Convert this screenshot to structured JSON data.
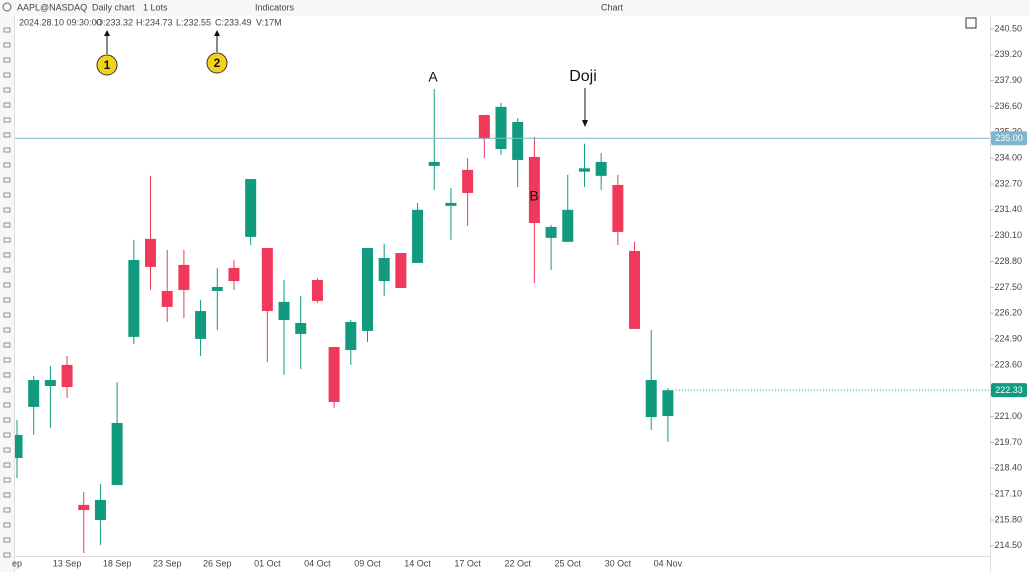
{
  "toolbar": {
    "symbol": "AAPL@NASDAQ",
    "timeframe": "Daily chart",
    "lots": "1 Lots",
    "indicators": "Indicators",
    "window_title": "Chart"
  },
  "legend": {
    "datetime": "2024.28.10 09:30:00",
    "open": "O:233.32",
    "high": "H:234.73",
    "low": "L:232.55",
    "close": "C:233.49",
    "volume": "V:17M"
  },
  "callouts": [
    "1",
    "2"
  ],
  "annotations": {
    "a": "A",
    "b": "B",
    "doji": "Doji"
  },
  "chart_data": {
    "type": "candlestick",
    "categories": [
      "ep",
      null,
      null,
      "13 Sep",
      null,
      null,
      "18 Sep",
      null,
      null,
      "23 Sep",
      null,
      null,
      "26 Sep",
      null,
      null,
      "01 Oct",
      null,
      null,
      "04 Oct",
      null,
      null,
      "09 Oct",
      null,
      null,
      "14 Oct",
      null,
      null,
      "17 Oct",
      null,
      null,
      "22 Oct",
      null,
      null,
      "25 Oct",
      null,
      null,
      "30 Oct",
      null,
      null,
      "04 Nov"
    ],
    "open": [
      218.92,
      221.49,
      222.54,
      223.6,
      216.56,
      215.8,
      217.56,
      225.01,
      229.94,
      227.32,
      228.63,
      224.91,
      227.32,
      228.48,
      230.04,
      229.48,
      225.86,
      225.16,
      227.87,
      224.5,
      224.35,
      225.31,
      227.82,
      229.23,
      228.73,
      233.61,
      231.6,
      233.41,
      236.17,
      234.46,
      233.91,
      234.06,
      229.99,
      229.79,
      233.32,
      233.11,
      232.65,
      229.33,
      220.98,
      221.03
    ],
    "high": [
      220.83,
      223.05,
      223.55,
      224.05,
      217.21,
      217.61,
      222.74,
      229.89,
      233.11,
      229.38,
      229.38,
      226.87,
      228.48,
      228.88,
      232.95,
      229.48,
      227.87,
      227.07,
      227.97,
      224.5,
      225.86,
      229.48,
      229.69,
      229.23,
      231.75,
      237.48,
      232.5,
      234.01,
      236.17,
      236.78,
      236.02,
      235.07,
      230.64,
      233.16,
      234.73,
      234.26,
      233.16,
      229.79,
      225.36,
      222.44
    ],
    "low": [
      217.91,
      220.08,
      220.43,
      221.94,
      214.14,
      214.54,
      217.56,
      224.65,
      227.37,
      225.76,
      225.96,
      224.05,
      225.36,
      227.37,
      229.63,
      223.75,
      223.1,
      223.4,
      226.72,
      221.44,
      223.6,
      224.76,
      227.07,
      227.47,
      228.73,
      232.4,
      229.89,
      230.59,
      234.01,
      234.16,
      232.55,
      227.72,
      228.38,
      229.79,
      232.55,
      232.4,
      229.63,
      225.41,
      220.33,
      219.73
    ],
    "close": [
      220.08,
      222.84,
      222.84,
      222.49,
      216.3,
      216.81,
      220.68,
      228.88,
      228.53,
      226.52,
      227.37,
      226.31,
      227.52,
      227.82,
      232.95,
      226.31,
      226.77,
      225.71,
      226.82,
      221.74,
      225.76,
      229.48,
      228.98,
      227.47,
      231.4,
      233.81,
      231.75,
      232.25,
      234.97,
      236.58,
      235.82,
      230.74,
      230.54,
      231.4,
      233.49,
      233.81,
      230.29,
      225.41,
      222.84,
      222.33
    ],
    "up_color": "#129a7f",
    "down_color": "#f0395a",
    "ylim": [
      214.04,
      241.15
    ],
    "yticks": [
      {
        "value": 240.5,
        "label": "240.50"
      },
      {
        "value": 239.2,
        "label": "239.20"
      },
      {
        "value": 237.9,
        "label": "237.90"
      },
      {
        "value": 236.6,
        "label": "236.60"
      },
      {
        "value": 235.3,
        "label": "235.30"
      },
      {
        "value": 234,
        "label": "234.00"
      },
      {
        "value": 232.7,
        "label": "232.70"
      },
      {
        "value": 231.4,
        "label": "231.40"
      },
      {
        "value": 230.1,
        "label": "230.10"
      },
      {
        "value": 228.8,
        "label": "228.80"
      },
      {
        "value": 227.5,
        "label": "227.50"
      },
      {
        "value": 226.2,
        "label": "226.20"
      },
      {
        "value": 224.9,
        "label": "224.90"
      },
      {
        "value": 223.6,
        "label": "223.60"
      },
      {
        "value": 222.3,
        "label": "222.30"
      },
      {
        "value": 221,
        "label": "221.00"
      },
      {
        "value": 219.7,
        "label": "219.70"
      },
      {
        "value": 218.4,
        "label": "218.40"
      },
      {
        "value": 217.1,
        "label": "217.10"
      },
      {
        "value": 215.8,
        "label": "215.80"
      },
      {
        "value": 214.5,
        "label": "214.50"
      }
    ],
    "price_lines": [
      {
        "value": 235,
        "label": "235.00",
        "color": "#7fb6cf",
        "style": "solid"
      },
      {
        "value": 222.33,
        "label": "222.33",
        "color": "#129a7f",
        "style": "dotted"
      }
    ],
    "grid": false
  }
}
